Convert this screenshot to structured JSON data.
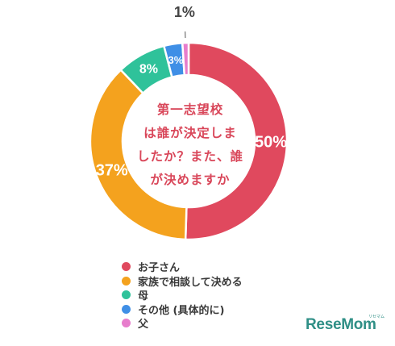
{
  "chart_data": {
    "type": "pie",
    "donut": true,
    "center_label": "第一志望校は誰が決定しましたか？また、誰が決めますか",
    "center_lines": [
      "第一志望校",
      "は誰が決定しま",
      "したか？また、誰",
      "が決めますか"
    ],
    "slices": [
      {
        "label": "お子さん",
        "value": 50,
        "display": "50%",
        "color": "#e0495e"
      },
      {
        "label": "家族で相談して決める",
        "value": 37,
        "display": "37%",
        "color": "#f4a21e"
      },
      {
        "label": "母",
        "value": 8,
        "display": "8%",
        "color": "#2fc29a"
      },
      {
        "label": "その他 (具体的に)",
        "value": 3,
        "display": "3%",
        "color": "#3f8fe6"
      },
      {
        "label": "父",
        "value": 1,
        "display": "1%",
        "color": "#e77dcc"
      }
    ],
    "legend_position": "bottom"
  },
  "branding": {
    "logo": "ReseMom",
    "logo_small": "リセマム"
  }
}
